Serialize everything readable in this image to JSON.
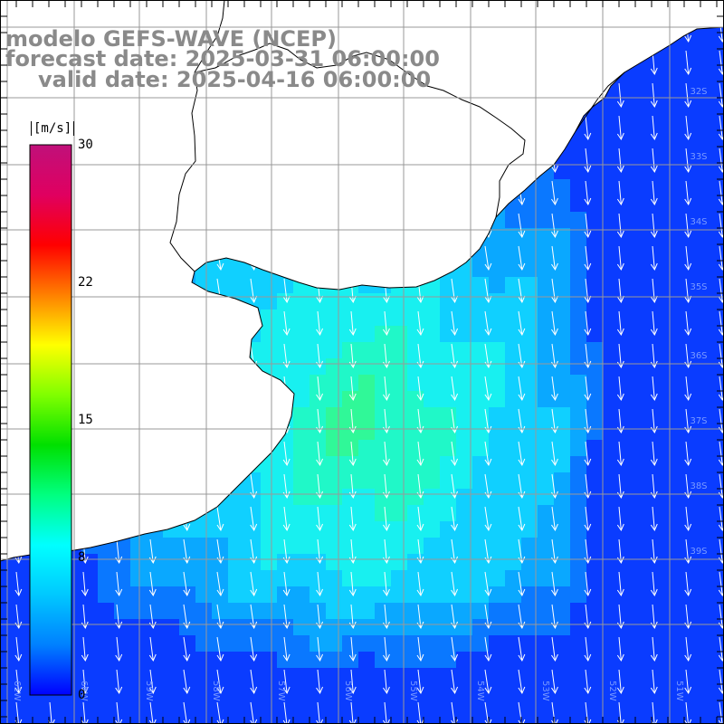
{
  "title": {
    "model": "modelo GEFS-WAVE (NCEP)",
    "forecast": "forecast date: 2025-03-31 06:00:00",
    "valid": "valid date: 2025-04-16 06:00:00"
  },
  "colorbar": {
    "unit": "[m/s]",
    "ticks": [
      "30",
      "22",
      "15",
      "8",
      "0"
    ],
    "tick_values": [
      30,
      22,
      15,
      8,
      0
    ],
    "stops": [
      "#0000ff",
      "#0080ff",
      "#00c8ff",
      "#00ffff",
      "#00ff80",
      "#00e000",
      "#80ff00",
      "#ffff00",
      "#ff8000",
      "#ff0000",
      "#e00060",
      "#c0107a"
    ]
  },
  "map": {
    "lat_labels": [
      "32S",
      "33S",
      "34S",
      "35S",
      "36S",
      "37S",
      "38S",
      "39S"
    ],
    "lon_labels": [
      "61W",
      "60W",
      "59W",
      "58W",
      "57W",
      "56W",
      "55W",
      "54W",
      "53W",
      "52W",
      "51W"
    ],
    "grid": true,
    "field": "wind speed and direction",
    "land_color": "#ffffff",
    "grid_color": "#999999"
  }
}
